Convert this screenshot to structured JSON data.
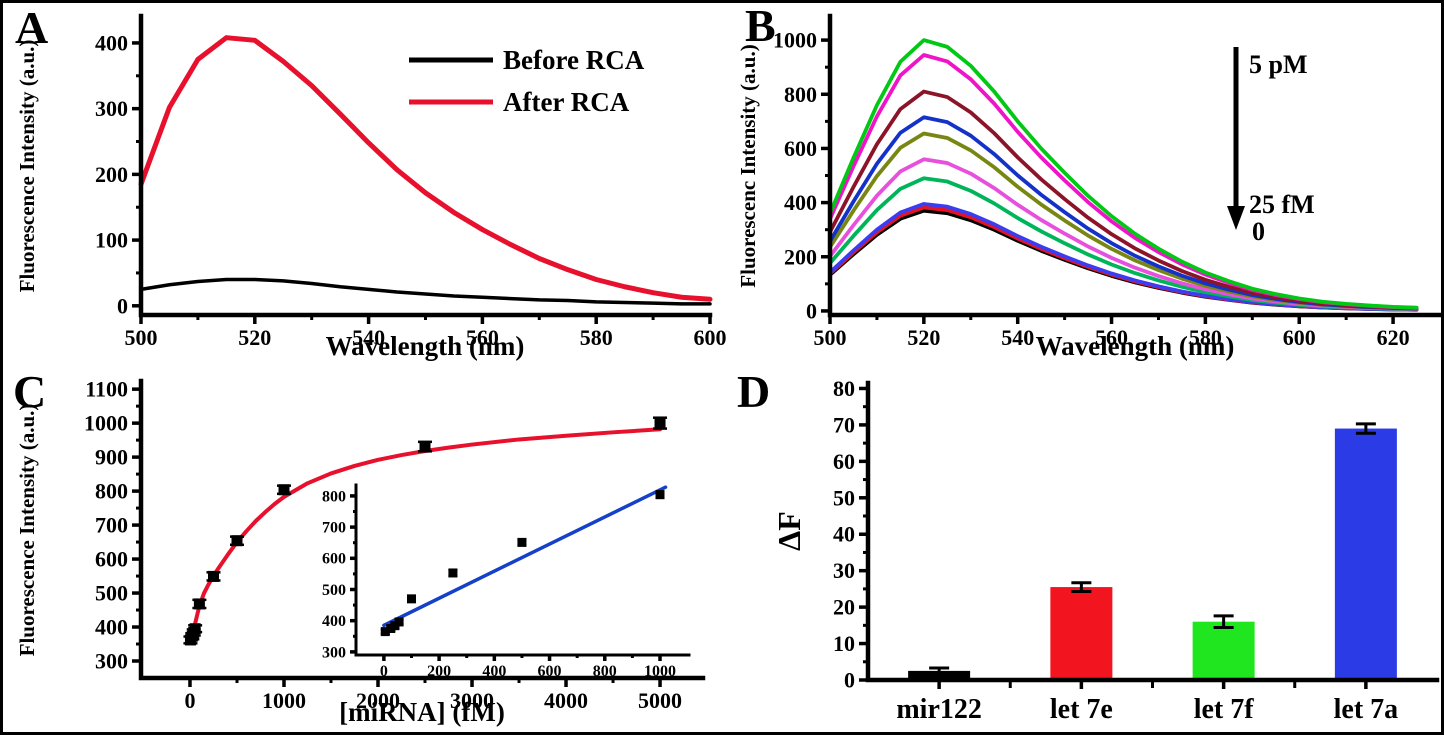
{
  "figure": {
    "background": "#ffffff",
    "border_color": "#000000",
    "text_color": "#000000"
  },
  "chart_data": [
    {
      "panel": "A",
      "type": "line",
      "xlabel": "Wavelength (nm)",
      "ylabel": "Fluorescence Intensity (a.u.)",
      "xlim": [
        500,
        600
      ],
      "ylim": [
        -14,
        441
      ],
      "xticks": [
        500,
        520,
        540,
        560,
        580,
        600
      ],
      "yticks": [
        0,
        100,
        200,
        300,
        400
      ],
      "x_minor": [
        510,
        530,
        550,
        570,
        590
      ],
      "y_minor": [
        50,
        150,
        250,
        350
      ],
      "grid": "off",
      "legend_position": "top-right",
      "legend": [
        {
          "label": "Before RCA",
          "color": "#000000"
        },
        {
          "label": "After RCA",
          "color": "#e8112d"
        }
      ],
      "x": [
        500,
        505,
        510,
        515,
        520,
        525,
        530,
        535,
        540,
        545,
        550,
        555,
        560,
        565,
        570,
        575,
        580,
        585,
        590,
        595,
        600
      ],
      "series": [
        {
          "name": "Before RCA",
          "color": "#000000",
          "width": 3.5,
          "y": [
            25,
            32,
            37,
            40,
            40,
            38,
            34,
            29,
            25,
            21,
            18,
            15,
            13,
            11,
            9,
            8,
            6,
            5,
            4,
            3,
            3
          ]
        },
        {
          "name": "After RCA",
          "color": "#e8112d",
          "width": 5,
          "y": [
            185,
            302,
            375,
            408,
            404,
            372,
            335,
            292,
            248,
            207,
            172,
            142,
            116,
            93,
            72,
            55,
            40,
            29,
            20,
            13,
            10
          ]
        }
      ]
    },
    {
      "panel": "B",
      "type": "line-profile",
      "xlabel": "Wavelength (nm)",
      "ylabel": "Fluorescenc Intensity (a.u.)",
      "xlim": [
        500,
        630
      ],
      "ylim": [
        -15,
        1089
      ],
      "xticks": [
        500,
        520,
        540,
        560,
        580,
        600,
        620
      ],
      "yticks": [
        0,
        200,
        400,
        600,
        800,
        1000
      ],
      "x_minor": [
        510,
        530,
        550,
        570,
        590,
        610
      ],
      "y_minor": [
        100,
        300,
        500,
        700,
        900
      ],
      "grid": "off",
      "series_note": "Spectra for miRNA concentrations from 5 pM (top curve) down to 25 fM and 0 (bottom curves), peaks at ~520 nm",
      "annotation": {
        "type": "down-arrow",
        "top_label": "5 pM",
        "bottom_label": "25 fM",
        "zero_label": "0"
      },
      "x_profile": [
        500,
        505,
        510,
        515,
        520,
        525,
        530,
        535,
        540,
        545,
        550,
        555,
        560,
        565,
        570,
        575,
        580,
        585,
        590,
        595,
        600,
        605,
        610,
        615,
        620,
        625
      ],
      "profile": [
        0.36,
        0.565,
        0.76,
        0.92,
        1.0,
        0.975,
        0.905,
        0.81,
        0.7,
        0.6,
        0.51,
        0.425,
        0.35,
        0.285,
        0.23,
        0.182,
        0.142,
        0.11,
        0.082,
        0.062,
        0.046,
        0.034,
        0.026,
        0.02,
        0.015,
        0.012
      ],
      "series": [
        {
          "name": "0",
          "color": "#000000",
          "peak": 370
        },
        {
          "name": "",
          "color": "#e61423",
          "peak": 382
        },
        {
          "name": "25 fM",
          "color": "#3c3cf0",
          "peak": 395
        },
        {
          "name": "",
          "color": "#00b45a",
          "peak": 490
        },
        {
          "name": "",
          "color": "#e650dc",
          "peak": 560
        },
        {
          "name": "",
          "color": "#788714",
          "peak": 655
        },
        {
          "name": "",
          "color": "#1432c8",
          "peak": 715
        },
        {
          "name": "",
          "color": "#8c1428",
          "peak": 810
        },
        {
          "name": "",
          "color": "#f014c8",
          "peak": 945
        },
        {
          "name": "5 pM",
          "color": "#00c814",
          "peak": 1000
        }
      ]
    },
    {
      "panel": "C",
      "type": "scatter-fit",
      "xlabel": "[miRNA] (fM)",
      "ylabel": "Fluorescence Intensity (a.u.)",
      "xlim": [
        -521,
        5457
      ],
      "ylim": [
        250,
        1124
      ],
      "xticks": [
        0,
        1000,
        2000,
        3000,
        4000,
        5000
      ],
      "yticks": [
        300,
        400,
        500,
        600,
        700,
        800,
        900,
        1000,
        1100
      ],
      "x_minor": [
        500,
        1500,
        2500,
        3500,
        4500
      ],
      "y_minor": [
        350,
        450,
        550,
        650,
        750,
        850,
        950,
        1050
      ],
      "grid": "off",
      "marker_color": "#000000",
      "points": {
        "x": [
          5,
          25,
          40,
          55,
          100,
          250,
          500,
          1000,
          2500,
          5000
        ],
        "y": [
          362,
          373,
          384,
          395,
          468,
          549,
          654,
          804,
          931,
          1000
        ],
        "err": [
          10,
          9,
          9,
          10,
          12,
          12,
          12,
          12,
          14,
          16
        ]
      },
      "fit": {
        "color": "#e8112d",
        "x": [
          0,
          50,
          100,
          150,
          200,
          250,
          300,
          400,
          500,
          600,
          700,
          800,
          900,
          1000,
          1250,
          1500,
          1750,
          2000,
          2250,
          2500,
          2750,
          3000,
          3500,
          4000,
          4500,
          5000
        ],
        "y": [
          355,
          405,
          462,
          500,
          527,
          550,
          572,
          612,
          650,
          682,
          712,
          738,
          762,
          783,
          823,
          852,
          874,
          892,
          906,
          918,
          928,
          937,
          952,
          963,
          973,
          982
        ]
      },
      "inset": {
        "xlim": [
          -101,
          1105
        ],
        "ylim": [
          290,
          835
        ],
        "xticks": [
          0,
          200,
          400,
          600,
          800,
          1000
        ],
        "yticks": [
          300,
          400,
          500,
          600,
          700,
          800
        ],
        "x_minor": [
          100,
          300,
          500,
          700,
          900
        ],
        "y_minor": [
          350,
          450,
          550,
          650,
          750
        ],
        "points": {
          "x": [
            5,
            25,
            40,
            55,
            100,
            250,
            500,
            1000
          ],
          "y": [
            365,
            375,
            384,
            396,
            470,
            553,
            651,
            804
          ],
          "err": [
            7,
            7,
            7,
            7,
            9,
            9,
            9,
            10
          ]
        },
        "line": {
          "color": "#1441c8",
          "x": [
            0,
            1020
          ],
          "y": [
            385,
            828
          ]
        }
      }
    },
    {
      "panel": "D",
      "type": "bar",
      "xlabel": "",
      "ylabel": "ΔF",
      "ylim": [
        0,
        81.5
      ],
      "yticks": [
        0,
        10,
        20,
        30,
        40,
        50,
        60,
        70,
        80
      ],
      "y_minor": [
        5,
        15,
        25,
        35,
        45,
        55,
        65,
        75
      ],
      "grid": "off",
      "categories": [
        "mir122",
        "let 7e",
        "let 7f",
        "let 7a"
      ],
      "values": [
        2.5,
        25.5,
        16,
        69
      ],
      "errors": [
        0.8,
        1.2,
        1.6,
        1.3
      ],
      "colors": [
        "#000000",
        "#f2141e",
        "#1fe61f",
        "#2b3ce6"
      ]
    }
  ]
}
